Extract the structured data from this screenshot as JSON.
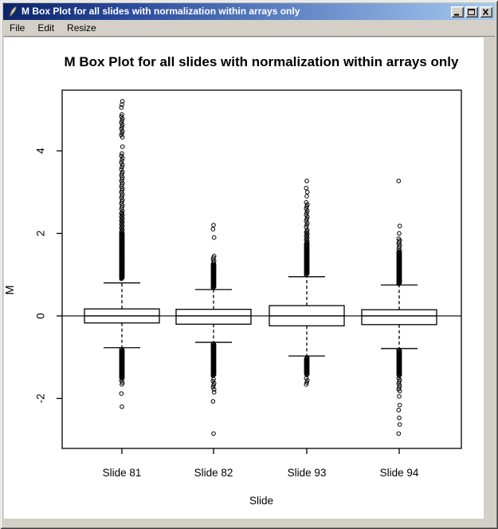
{
  "window": {
    "title": "M Box Plot for all slides with normalization within arrays only",
    "icon": "quill-pen-icon",
    "controls": [
      {
        "name": "minimize-button",
        "icon": "minimize-icon"
      },
      {
        "name": "maximize-button",
        "icon": "maximize-icon"
      },
      {
        "name": "close-button",
        "icon": "close-icon"
      }
    ]
  },
  "menu": {
    "items": [
      {
        "label": "File"
      },
      {
        "label": "Edit"
      },
      {
        "label": "Resize"
      }
    ]
  },
  "colors": {
    "titlebar_gradient_left": "#0a246a",
    "titlebar_gradient_right": "#a6caf0",
    "chrome_face": "#d4d0c8",
    "canvas_background": "#ffffff",
    "plot_ink": "#000000",
    "title_text": "#ffffff"
  },
  "chart_data": {
    "type": "boxplot",
    "title": "M Box Plot for all slides with normalization within arrays only",
    "xlabel": "Slide",
    "ylabel": "M",
    "ylim": [
      -3.21,
      5.47
    ],
    "yticks": [
      -2,
      0,
      2,
      4
    ],
    "ytick_labels": [
      "-2",
      "0",
      "2",
      "4"
    ],
    "reference_line_y": 0,
    "grid": false,
    "legend": "none",
    "categories": [
      "Slide 81",
      "Slide 82",
      "Slide 93",
      "Slide 94"
    ],
    "boxes": [
      {
        "label": "Slide 81",
        "q1": -0.17,
        "median": 0.0,
        "q3": 0.17,
        "whisker_low": -0.77,
        "whisker_high": 0.8,
        "outlier_runs": [
          [
            0.9,
            2.0,
            0.015
          ],
          [
            2.0,
            2.5,
            0.03
          ],
          [
            2.5,
            3.5,
            0.045
          ],
          [
            3.55,
            3.95,
            0.055
          ],
          [
            4.33,
            4.9,
            0.05
          ],
          [
            -1.5,
            -0.8,
            0.015
          ],
          [
            -1.66,
            -1.52,
            0.045
          ]
        ],
        "outlier_points": [
          4.1,
          5.05,
          5.12,
          5.2,
          -1.88,
          -2.2
        ]
      },
      {
        "label": "Slide 82",
        "q1": -0.2,
        "median": 0.0,
        "q3": 0.16,
        "whisker_low": -0.64,
        "whisker_high": 0.64,
        "outlier_runs": [
          [
            0.68,
            1.25,
            0.015
          ],
          [
            1.25,
            1.45,
            0.04
          ],
          [
            -1.45,
            -0.66,
            0.015
          ],
          [
            -1.78,
            -1.5,
            0.05
          ]
        ],
        "outlier_points": [
          1.9,
          2.1,
          2.2,
          -1.85,
          -2.07,
          -2.85
        ]
      },
      {
        "label": "Slide 93",
        "q1": -0.24,
        "median": 0.0,
        "q3": 0.25,
        "whisker_low": -0.97,
        "whisker_high": 0.95,
        "outlier_runs": [
          [
            1.0,
            1.75,
            0.015
          ],
          [
            1.75,
            2.1,
            0.03
          ],
          [
            2.15,
            2.75,
            0.05
          ],
          [
            -1.43,
            -1.0,
            0.015
          ],
          [
            -1.66,
            -1.47,
            0.05
          ]
        ],
        "outlier_points": [
          2.9,
          3.0,
          3.1,
          3.27
        ]
      },
      {
        "label": "Slide 94",
        "q1": -0.21,
        "median": 0.0,
        "q3": 0.15,
        "whisker_low": -0.79,
        "whisker_high": 0.75,
        "outlier_runs": [
          [
            0.78,
            1.55,
            0.015
          ],
          [
            1.55,
            1.9,
            0.04
          ],
          [
            -1.45,
            -0.81,
            0.015
          ],
          [
            -1.82,
            -1.5,
            0.045
          ]
        ],
        "outlier_points": [
          2.0,
          2.18,
          3.27,
          -1.95,
          -2.16,
          -2.28,
          -2.47,
          -2.63,
          -2.85
        ]
      }
    ]
  }
}
